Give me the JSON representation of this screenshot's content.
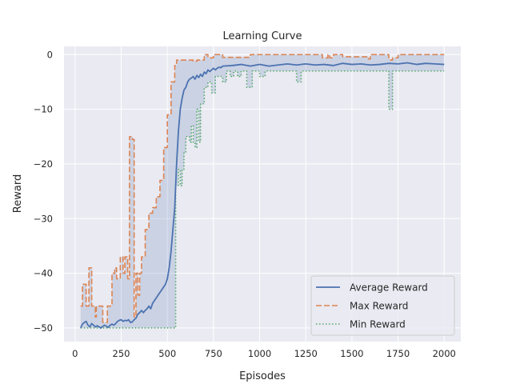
{
  "chart_data": {
    "type": "line",
    "title": "Learning Curve",
    "xlabel": "Episodes",
    "ylabel": "Reward",
    "xlim": [
      -60,
      2090
    ],
    "ylim": [
      -52.5,
      1.5
    ],
    "xticks": [
      0,
      250,
      500,
      750,
      1000,
      1250,
      1500,
      1750,
      2000
    ],
    "yticks": [
      0,
      -10,
      -20,
      -30,
      -40,
      -50
    ],
    "xtick_labels": [
      "0",
      "250",
      "500",
      "750",
      "1000",
      "1250",
      "1500",
      "1750",
      "2000"
    ],
    "ytick_labels": [
      "0",
      "−10",
      "−20",
      "−30",
      "−40",
      "−50"
    ],
    "grid": true,
    "legend_position": "lower-right",
    "band": {
      "between": [
        "Min Reward",
        "Max Reward"
      ],
      "color": "#4c72b0",
      "opacity": 0.2
    },
    "series": [
      {
        "name": "Average Reward",
        "color": "#4c72b0",
        "style": "solid",
        "x": [
          30,
          40,
          50,
          60,
          70,
          80,
          90,
          100,
          110,
          120,
          130,
          140,
          150,
          160,
          170,
          180,
          190,
          200,
          210,
          220,
          230,
          240,
          250,
          260,
          270,
          280,
          290,
          300,
          310,
          320,
          330,
          340,
          350,
          360,
          370,
          380,
          390,
          400,
          410,
          420,
          430,
          440,
          450,
          460,
          470,
          480,
          490,
          500,
          510,
          520,
          530,
          540,
          550,
          560,
          570,
          580,
          590,
          600,
          610,
          620,
          630,
          640,
          650,
          660,
          670,
          680,
          690,
          700,
          710,
          720,
          730,
          740,
          750,
          760,
          770,
          780,
          790,
          800,
          850,
          900,
          950,
          1000,
          1050,
          1100,
          1150,
          1200,
          1250,
          1300,
          1350,
          1400,
          1450,
          1500,
          1550,
          1600,
          1650,
          1700,
          1750,
          1800,
          1850,
          1900,
          1950,
          2000
        ],
        "y": [
          -50,
          -49.3,
          -49,
          -48.8,
          -49.5,
          -49.8,
          -49.2,
          -49.5,
          -49.8,
          -49.6,
          -49.8,
          -50,
          -49.7,
          -49.5,
          -49.7,
          -49.9,
          -49.5,
          -49.3,
          -49.5,
          -49.2,
          -48.8,
          -48.6,
          -48.5,
          -48.8,
          -48.6,
          -48.7,
          -48.5,
          -49,
          -48.9,
          -48.5,
          -48.2,
          -47.5,
          -47.2,
          -46.8,
          -47.2,
          -46.8,
          -46.5,
          -46,
          -46.5,
          -45.5,
          -45,
          -44.5,
          -44,
          -43.5,
          -43,
          -42.5,
          -42,
          -41,
          -39,
          -36,
          -32,
          -28,
          -20,
          -14,
          -10,
          -8,
          -6.5,
          -6,
          -5,
          -4.5,
          -4.3,
          -4,
          -4.5,
          -3.8,
          -4.2,
          -3.6,
          -4,
          -3.2,
          -3.5,
          -2.8,
          -3.1,
          -2.8,
          -2.5,
          -2.8,
          -2.5,
          -2.3,
          -2.4,
          -2.1,
          -2,
          -1.8,
          -2.1,
          -1.8,
          -2.1,
          -1.9,
          -1.7,
          -1.9,
          -1.7,
          -1.9,
          -1.8,
          -2.0,
          -1.6,
          -1.8,
          -1.7,
          -1.9,
          -1.8,
          -1.6,
          -1.7,
          -1.5,
          -1.8,
          -1.6,
          -1.7,
          -1.8
        ]
      },
      {
        "name": "Max Reward",
        "color": "#dd8452",
        "style": "dashed",
        "x": [
          30,
          40,
          40,
          60,
          60,
          75,
          75,
          90,
          90,
          110,
          110,
          115,
          115,
          150,
          150,
          175,
          175,
          200,
          200,
          215,
          215,
          225,
          225,
          245,
          245,
          260,
          260,
          270,
          270,
          285,
          285,
          295,
          295,
          310,
          310,
          320,
          320,
          330,
          330,
          340,
          340,
          350,
          350,
          360,
          360,
          380,
          380,
          400,
          400,
          420,
          420,
          440,
          440,
          460,
          460,
          480,
          480,
          500,
          500,
          510,
          510,
          520,
          520,
          540,
          540,
          550,
          550,
          580,
          580,
          640,
          640,
          660,
          660,
          700,
          700,
          720,
          720,
          750,
          750,
          800,
          800,
          950,
          950,
          1340,
          1340,
          1370,
          1370,
          1380,
          1380,
          1400,
          1400,
          1450,
          1450,
          1590,
          1590,
          1600,
          1600,
          1700,
          1700,
          1720,
          1720,
          1750,
          1750,
          2000
        ],
        "y": [
          -46,
          -46,
          -42,
          -42,
          -46,
          -46,
          -39,
          -39,
          -46,
          -46,
          -48,
          -48,
          -46,
          -46,
          -49,
          -49,
          -46,
          -46,
          -40,
          -40,
          -39,
          -39,
          -41,
          -41,
          -37,
          -37,
          -40,
          -40,
          -37,
          -37,
          -41,
          -41,
          -15,
          -15,
          -15.5,
          -15.5,
          -48,
          -48,
          -40,
          -40,
          -44,
          -44,
          -40,
          -40,
          -37,
          -37,
          -32,
          -32,
          -29,
          -29,
          -28,
          -28,
          -26,
          -26,
          -23,
          -23,
          -17,
          -17,
          -11,
          -11,
          -11,
          -11,
          -5,
          -5,
          -2,
          -2,
          -1,
          -1,
          -1,
          -1,
          -1.2,
          -1.2,
          -1,
          -1,
          0,
          0,
          -0.6,
          -0.6,
          0,
          0,
          -0.5,
          -0.5,
          0,
          0,
          -0.6,
          -0.6,
          0,
          0,
          -0.6,
          -0.6,
          0,
          0,
          -0.4,
          -0.4,
          -0.8,
          -0.8,
          0,
          0,
          -1,
          -1,
          -0.6,
          -0.6,
          0,
          0
        ]
      },
      {
        "name": "Min Reward",
        "color": "#55a868",
        "style": "dotted",
        "x": [
          30,
          545,
          545,
          560,
          560,
          570,
          570,
          580,
          580,
          590,
          590,
          600,
          600,
          620,
          620,
          630,
          630,
          640,
          640,
          650,
          650,
          660,
          660,
          670,
          670,
          680,
          680,
          700,
          700,
          720,
          720,
          740,
          740,
          760,
          760,
          800,
          800,
          820,
          820,
          840,
          840,
          860,
          860,
          880,
          880,
          900,
          900,
          930,
          930,
          960,
          960,
          1000,
          1000,
          1030,
          1030,
          1050,
          1050,
          1200,
          1200,
          1225,
          1225,
          1700,
          1700,
          1720,
          1720,
          2000
        ],
        "y": [
          -50,
          -50,
          -24,
          -24,
          -21,
          -21,
          -24,
          -24,
          -21,
          -21,
          -18,
          -18,
          -15,
          -15,
          -16,
          -16,
          -13,
          -13,
          -16,
          -16,
          -17,
          -17,
          -10,
          -10,
          -16,
          -16,
          -9,
          -9,
          -6,
          -6,
          -5,
          -5,
          -7,
          -7,
          -4,
          -4,
          -5,
          -5,
          -3,
          -3,
          -4,
          -4,
          -3,
          -3,
          -4,
          -4,
          -3,
          -3,
          -6,
          -6,
          -3,
          -3,
          -4,
          -4,
          -3,
          -3,
          -3,
          -3,
          -5,
          -5,
          -3,
          -3,
          -10,
          -10,
          -3,
          -3
        ]
      }
    ]
  }
}
